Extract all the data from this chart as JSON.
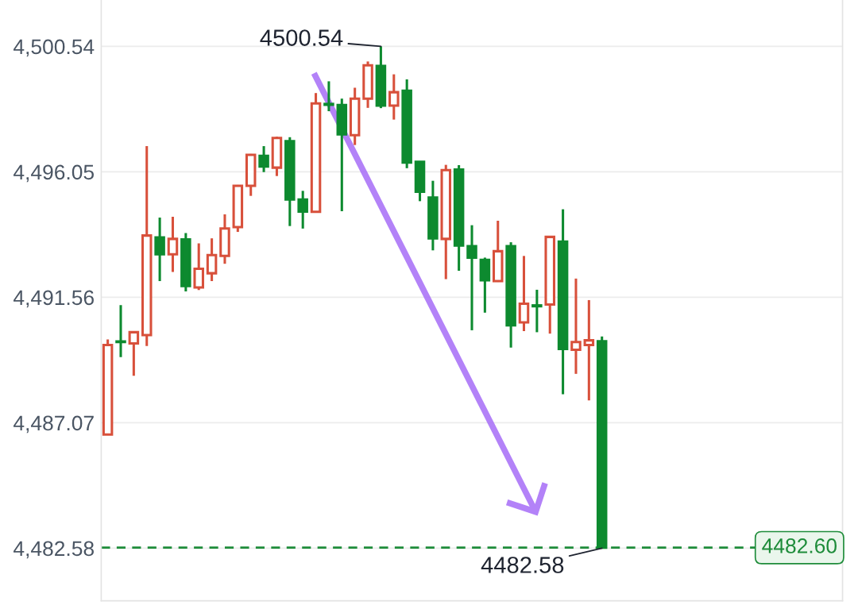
{
  "chart_data": {
    "type": "candlestick",
    "categories": [
      null,
      null,
      null,
      null,
      null,
      null,
      null,
      null,
      null,
      null,
      null,
      null,
      null,
      null,
      null,
      null,
      null,
      null,
      null,
      null,
      null,
      null,
      null,
      null,
      null,
      null,
      null,
      null,
      null,
      null,
      null,
      null,
      null,
      null,
      null,
      null,
      null,
      null,
      null,
      null,
      null,
      null,
      null,
      null,
      null,
      null,
      null,
      null,
      null,
      null,
      null,
      null,
      null,
      null,
      null,
      null,
      null
    ],
    "ohlc": [
      [
        4486.65,
        4490.05,
        4486.65,
        4489.85
      ],
      [
        4489.98,
        4491.28,
        4489.42,
        4489.96
      ],
      [
        4489.91,
        4490.31,
        4488.75,
        4490.31
      ],
      [
        4490.21,
        4496.97,
        4489.82,
        4493.77
      ],
      [
        4493.7,
        4494.41,
        4492.14,
        4493.1
      ],
      [
        4493.1,
        4494.44,
        4492.47,
        4493.65
      ],
      [
        4493.63,
        4493.86,
        4491.77,
        4491.96
      ],
      [
        4491.91,
        4493.49,
        4491.82,
        4492.58
      ],
      [
        4492.42,
        4493.67,
        4492.14,
        4493.07
      ],
      [
        4493.04,
        4494.53,
        4492.76,
        4494.02
      ],
      [
        4494.07,
        4495.58,
        4493.9,
        4495.55
      ],
      [
        4495.55,
        4496.69,
        4495.19,
        4496.66
      ],
      [
        4496.62,
        4496.97,
        4496.04,
        4496.24
      ],
      [
        4496.2,
        4497.31,
        4495.9,
        4497.26
      ],
      [
        4497.15,
        4497.29,
        4494.11,
        4495.06
      ],
      [
        4495.06,
        4495.37,
        4494.02,
        4494.63
      ],
      [
        4494.62,
        4498.87,
        4494.62,
        4498.5
      ],
      [
        4498.48,
        4499.29,
        4498.22,
        4498.45
      ],
      [
        4498.44,
        4498.67,
        4494.64,
        4497.39
      ],
      [
        4497.36,
        4499.06,
        4497.01,
        4498.67
      ],
      [
        4498.67,
        4500.0,
        4498.34,
        4499.86
      ],
      [
        4499.84,
        4500.54,
        4498.33,
        4498.42
      ],
      [
        4498.42,
        4499.54,
        4497.92,
        4498.9
      ],
      [
        4498.95,
        4499.36,
        4496.18,
        4496.38
      ],
      [
        4496.41,
        4496.43,
        4495.0,
        4495.34
      ],
      [
        4495.13,
        4495.73,
        4493.24,
        4493.67
      ],
      [
        4493.65,
        4496.3,
        4492.21,
        4496.11
      ],
      [
        4496.13,
        4496.29,
        4492.51,
        4493.41
      ],
      [
        4493.39,
        4494.14,
        4490.38,
        4492.98
      ],
      [
        4492.9,
        4492.98,
        4491.01,
        4492.17
      ],
      [
        4492.14,
        4494.3,
        4492.11,
        4493.21
      ],
      [
        4493.39,
        4493.53,
        4489.76,
        4490.56
      ],
      [
        4490.66,
        4493.04,
        4490.35,
        4491.33
      ],
      [
        4491.27,
        4491.83,
        4490.31,
        4491.24
      ],
      [
        4491.3,
        4493.72,
        4490.26,
        4493.72
      ],
      [
        4493.55,
        4494.71,
        4488.09,
        4489.71
      ],
      [
        4489.68,
        4492.23,
        4488.82,
        4489.96
      ],
      [
        4489.85,
        4491.46,
        4487.87,
        4490.02
      ],
      [
        4489.99,
        4490.16,
        4482.58,
        4482.6
      ],
      null,
      null,
      null,
      null,
      null,
      null,
      null,
      null,
      null,
      null,
      null,
      null,
      null,
      null,
      null,
      null,
      null,
      null
    ],
    "colors": [
      "#d8503b",
      "#0d8a2f",
      "#d8503b",
      "#d8503b",
      "#0d8a2f",
      "#d8503b",
      "#0d8a2f",
      "#d8503b",
      "#d8503b",
      "#d8503b",
      "#d8503b",
      "#d8503b",
      "#0d8a2f",
      "#d8503b",
      "#0d8a2f",
      "#0d8a2f",
      "#d8503b",
      "#0d8a2f",
      "#0d8a2f",
      "#d8503b",
      "#d8503b",
      "#0d8a2f",
      "#d8503b",
      "#0d8a2f",
      "#0d8a2f",
      "#0d8a2f",
      "#d8503b",
      "#0d8a2f",
      "#0d8a2f",
      "#0d8a2f",
      "#d8503b",
      "#0d8a2f",
      "#d8503b",
      "#0d8a2f",
      "#d8503b",
      "#0d8a2f",
      "#d8503b",
      "#d8503b",
      "#0d8a2f",
      null,
      null,
      null,
      null,
      null,
      null,
      null,
      null,
      null,
      null,
      null,
      null,
      null,
      null,
      null,
      null,
      null,
      null
    ],
    "ylim": [
      4480.7,
      4502.2
    ],
    "yticks": [
      {
        "value": 4482.58,
        "label": "4,482.58"
      },
      {
        "value": 4487.07,
        "label": "4,487.07"
      },
      {
        "value": 4491.56,
        "label": "4,491.56"
      },
      {
        "value": 4496.05,
        "label": "4,496.05"
      },
      {
        "value": 4500.54,
        "label": "4,500.54"
      }
    ],
    "tick_labels": "y",
    "grid": "y",
    "ref_lines": [
      {
        "axis": "y",
        "value": 4482.6,
        "label": "4482.60",
        "color": "#1e8c3a",
        "line_style": "dashed"
      }
    ],
    "annotations": [
      "4500.54",
      "4482.58"
    ]
  }
}
